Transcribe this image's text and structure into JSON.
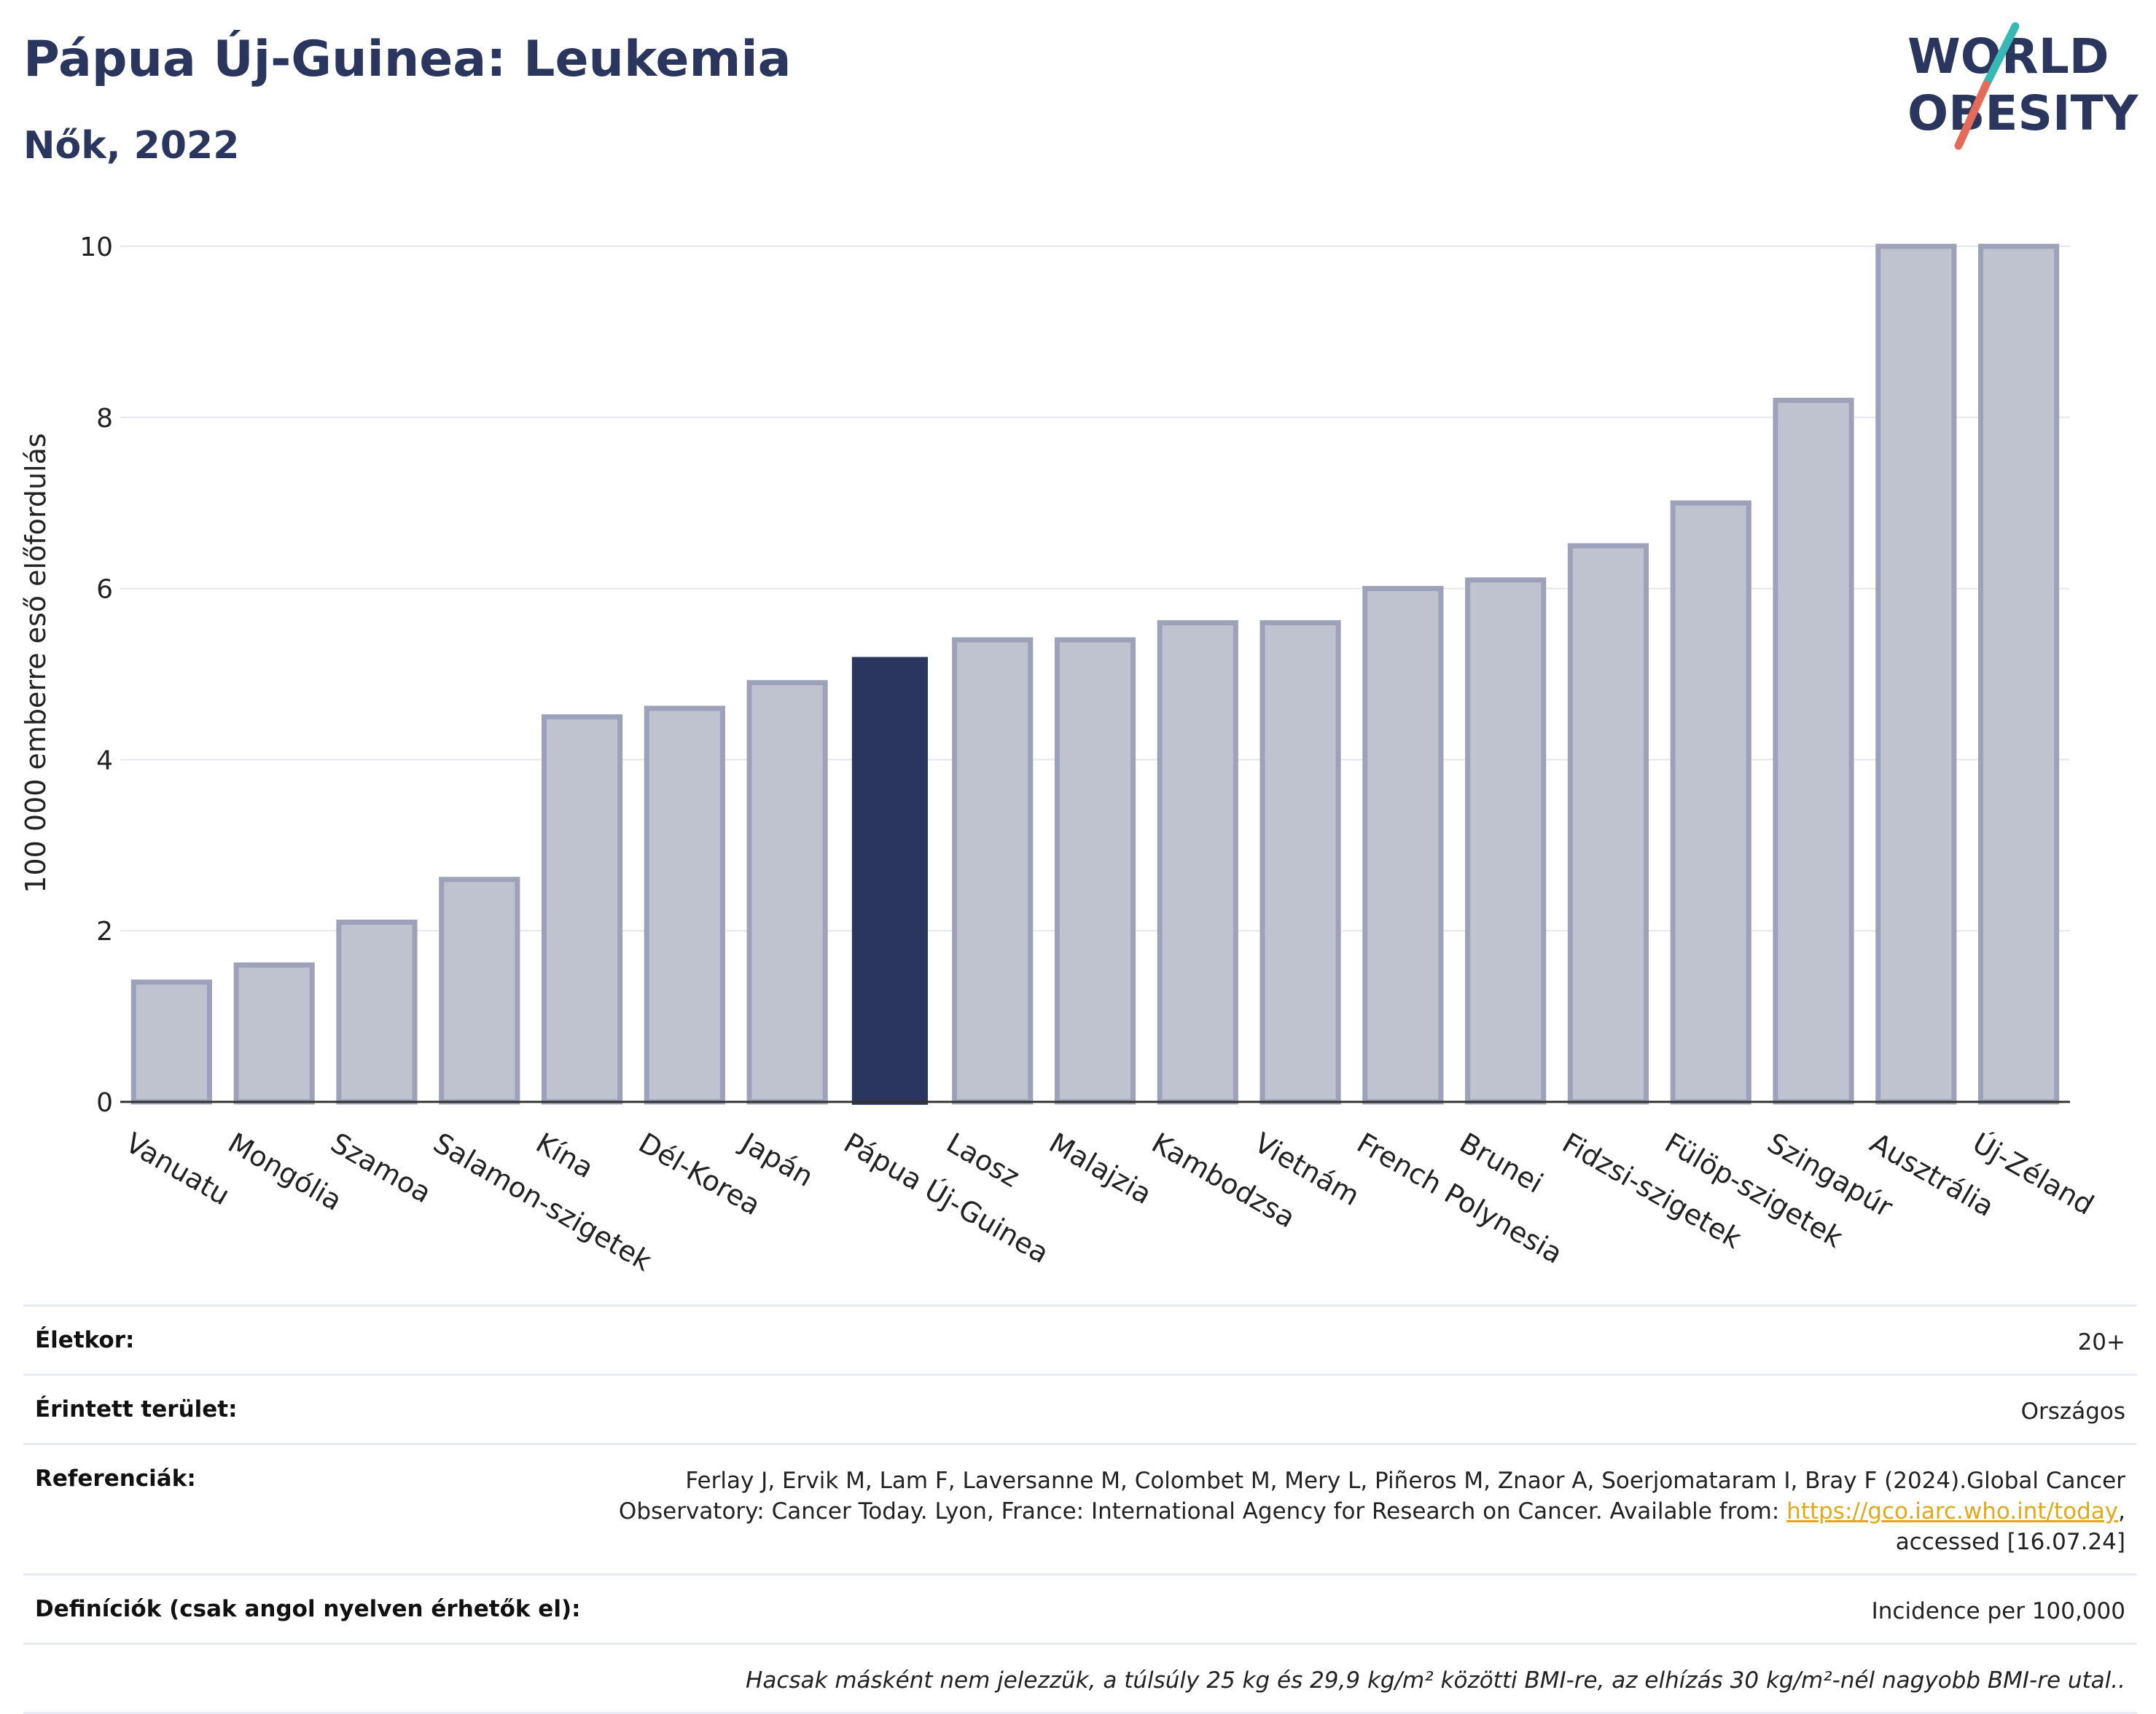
{
  "header": {
    "title": "Pápua Új-Guinea: Leukemia",
    "subtitle": "Nők, 2022"
  },
  "logo": {
    "line1": "WORLD",
    "line2": "OBESITY"
  },
  "colors": {
    "highlight": "#2b365e",
    "bar": "#bfc2cf",
    "bar_edge": "#9da1b9",
    "title": "#2b365e",
    "logo_teal": "#37b8b4",
    "logo_coral": "#e46b5a"
  },
  "chart_data": {
    "type": "bar",
    "categories": [
      "Vanuatu",
      "Mongólia",
      "Szamoa",
      "Salamon-szigetek",
      "Kína",
      "Dél-Korea",
      "Japán",
      "Pápua Új-Guinea",
      "Laosz",
      "Malajzia",
      "Kambodzsa",
      "Vietnám",
      "French Polynesia",
      "Brunei",
      "Fidzsi-szigetek",
      "Fülöp-szigetek",
      "Szingapúr",
      "Ausztrália",
      "Új-Zéland"
    ],
    "values": [
      1.4,
      1.6,
      2.1,
      2.6,
      4.5,
      4.6,
      4.9,
      5.2,
      5.4,
      5.4,
      5.6,
      5.6,
      6.0,
      6.1,
      6.5,
      7.0,
      8.2,
      10.0,
      10.0
    ],
    "highlight": "Pápua Új-Guinea",
    "ylabel": "100 000 emberre eső előfordulás",
    "ylim": [
      0,
      10
    ],
    "yticks": [
      0,
      2,
      4,
      6,
      8,
      10
    ],
    "grid": true
  },
  "info": {
    "age_label": "Életkor:",
    "age_value": "20+",
    "area_label": "Érintett terület:",
    "area_value": "Országos",
    "ref_label": "Referenciák:",
    "ref_text_1": "Ferlay J, Ervik M, Lam F, Laversanne M, Colombet M, Mery L, Piñeros M, Znaor A, Soerjomataram I, Bray F (2024).Global Cancer Observatory: Cancer Today. Lyon, France: International Agency for Research on Cancer. Available from: ",
    "ref_link": "https://gco.iarc.who.int/today",
    "ref_text_2": ", accessed [16.07.24]",
    "def_label": "Definíciók (csak angol nyelven érhetők el):",
    "def_value": "Incidence per 100,000",
    "note": "Hacsak másként nem jelezzük, a túlsúly 25 kg és 29,9 kg/m² közötti BMI-re, az elhízás 30 kg/m²-nél nagyobb BMI-re utal.."
  }
}
